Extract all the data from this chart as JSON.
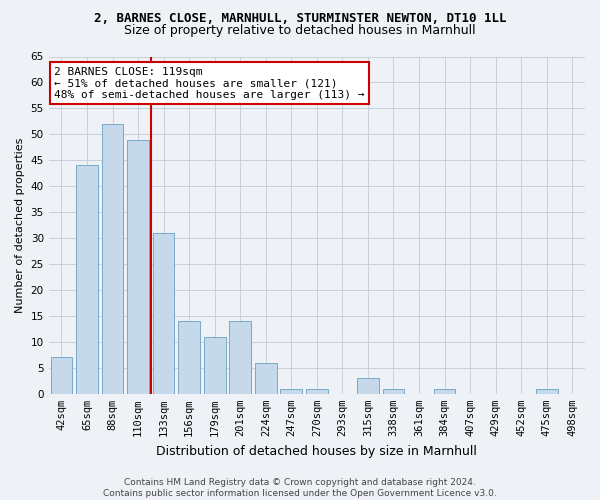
{
  "title1": "2, BARNES CLOSE, MARNHULL, STURMINSTER NEWTON, DT10 1LL",
  "title2": "Size of property relative to detached houses in Marnhull",
  "xlabel": "Distribution of detached houses by size in Marnhull",
  "ylabel": "Number of detached properties",
  "categories": [
    "42sqm",
    "65sqm",
    "88sqm",
    "110sqm",
    "133sqm",
    "156sqm",
    "179sqm",
    "201sqm",
    "224sqm",
    "247sqm",
    "270sqm",
    "293sqm",
    "315sqm",
    "338sqm",
    "361sqm",
    "384sqm",
    "407sqm",
    "429sqm",
    "452sqm",
    "475sqm",
    "498sqm"
  ],
  "values": [
    7,
    44,
    52,
    49,
    31,
    14,
    11,
    14,
    6,
    1,
    1,
    0,
    3,
    1,
    0,
    1,
    0,
    0,
    0,
    1,
    0
  ],
  "bar_color": "#c6d9ea",
  "bar_edge_color": "#7aaac8",
  "ylim": [
    0,
    65
  ],
  "yticks": [
    0,
    5,
    10,
    15,
    20,
    25,
    30,
    35,
    40,
    45,
    50,
    55,
    60,
    65
  ],
  "vline_x": 3.5,
  "vline_color": "#cc0000",
  "annotation_text": "2 BARNES CLOSE: 119sqm\n← 51% of detached houses are smaller (121)\n48% of semi-detached houses are larger (113) →",
  "annotation_box_color": "#ffffff",
  "annotation_box_edge": "#cc0000",
  "footer1": "Contains HM Land Registry data © Crown copyright and database right 2024.",
  "footer2": "Contains public sector information licensed under the Open Government Licence v3.0.",
  "bg_color": "#eef2f7",
  "grid_color": "#c0ccd8",
  "title1_fontsize": 9,
  "title2_fontsize": 9,
  "xlabel_fontsize": 9,
  "ylabel_fontsize": 8,
  "annot_fontsize": 8,
  "tick_fontsize": 7.5,
  "footer_fontsize": 6.5
}
